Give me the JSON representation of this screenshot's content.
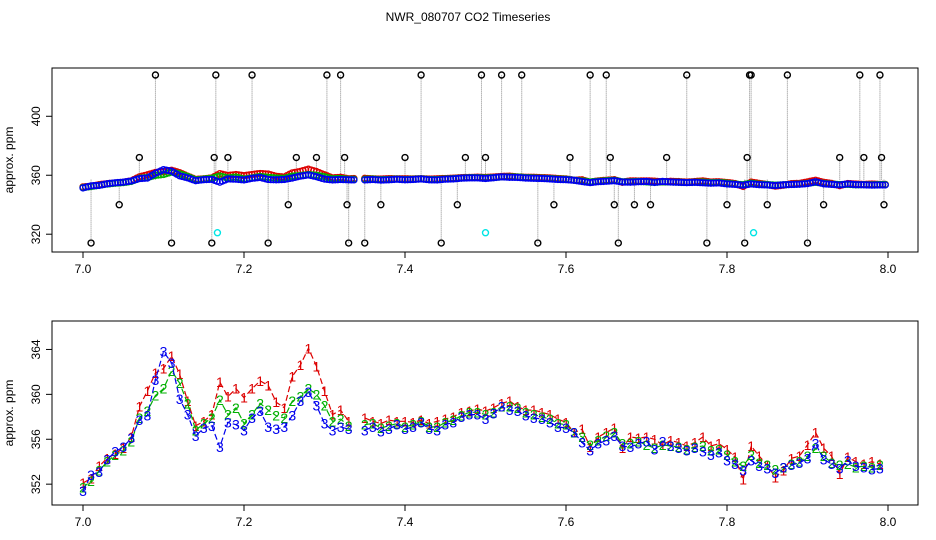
{
  "title": "NWR_080707  CO2 Timeseries",
  "colors": {
    "black": "#000000",
    "red": "#dd0000",
    "green": "#00b000",
    "blue": "#0000ee",
    "cyan": "#00e5e5",
    "grey": "#8a8a8a"
  },
  "chart_data": [
    {
      "type": "scatter",
      "name": "top-panel",
      "ylabel": "approx. ppm",
      "xlim": [
        7.0,
        8.0
      ],
      "ylim": [
        312,
        428
      ],
      "xticks": [
        "7.0",
        "7.2",
        "7.4",
        "7.6",
        "7.8",
        "8.0"
      ],
      "xtick_values": [
        7.0,
        7.2,
        7.4,
        7.6,
        7.8,
        8.0
      ],
      "yticks": [
        "320",
        "360",
        "400"
      ],
      "ytick_values": [
        320,
        360,
        400
      ],
      "outliers_x": [
        7.01,
        7.045,
        7.07,
        7.09,
        7.11,
        7.16,
        7.163,
        7.165,
        7.18,
        7.21,
        7.23,
        7.255,
        7.265,
        7.29,
        7.303,
        7.32,
        7.325,
        7.328,
        7.33,
        7.35,
        7.37,
        7.4,
        7.42,
        7.445,
        7.465,
        7.475,
        7.495,
        7.5,
        7.52,
        7.545,
        7.565,
        7.585,
        7.605,
        7.63,
        7.65,
        7.655,
        7.66,
        7.665,
        7.685,
        7.705,
        7.725,
        7.75,
        7.775,
        7.8,
        7.822,
        7.825,
        7.828,
        7.83,
        7.85,
        7.875,
        7.9,
        7.92,
        7.94,
        7.965,
        7.97,
        7.99,
        7.992,
        7.995
      ],
      "outliers_y": [
        314,
        340,
        372,
        428,
        314,
        314,
        372,
        428,
        372,
        428,
        314,
        340,
        372,
        372,
        428,
        428,
        372,
        340,
        314,
        314,
        340,
        372,
        428,
        314,
        340,
        372,
        428,
        372,
        428,
        428,
        314,
        340,
        372,
        428,
        428,
        372,
        340,
        314,
        340,
        340,
        372,
        428,
        314,
        340,
        314,
        372,
        428,
        428,
        340,
        428,
        314,
        340,
        372,
        428,
        372,
        428,
        372,
        340
      ],
      "cyan_x": [
        7.167,
        7.5,
        7.833
      ],
      "cyan_y": [
        321,
        321,
        321
      ],
      "series_names": [
        "1",
        "2",
        "3"
      ]
    },
    {
      "type": "line",
      "name": "bottom-panel",
      "ylabel": "approx. ppm",
      "xlim": [
        7.0,
        8.0
      ],
      "ylim": [
        350.5,
        366
      ],
      "xticks": [
        "7.0",
        "7.2",
        "7.4",
        "7.6",
        "7.8",
        "8.0"
      ],
      "xtick_values": [
        7.0,
        7.2,
        7.4,
        7.6,
        7.8,
        8.0
      ],
      "yticks": [
        "352",
        "356",
        "360",
        "364"
      ],
      "ytick_values": [
        352,
        356,
        360,
        364
      ],
      "gap_after": [
        7.33
      ],
      "series": [
        {
          "name": "1",
          "color": "#dd0000",
          "x": [
            7.0,
            7.01,
            7.02,
            7.03,
            7.04,
            7.05,
            7.06,
            7.07,
            7.08,
            7.09,
            7.1,
            7.11,
            7.12,
            7.13,
            7.14,
            7.15,
            7.16,
            7.17,
            7.18,
            7.19,
            7.2,
            7.21,
            7.22,
            7.23,
            7.24,
            7.25,
            7.26,
            7.27,
            7.28,
            7.29,
            7.3,
            7.31,
            7.32,
            7.33,
            7.35,
            7.36,
            7.37,
            7.38,
            7.39,
            7.4,
            7.41,
            7.42,
            7.43,
            7.44,
            7.45,
            7.46,
            7.47,
            7.48,
            7.49,
            7.5,
            7.51,
            7.52,
            7.53,
            7.54,
            7.55,
            7.56,
            7.57,
            7.58,
            7.59,
            7.6,
            7.61,
            7.62,
            7.63,
            7.64,
            7.65,
            7.66,
            7.67,
            7.68,
            7.69,
            7.7,
            7.71,
            7.72,
            7.73,
            7.74,
            7.75,
            7.76,
            7.77,
            7.78,
            7.79,
            7.8,
            7.81,
            7.82,
            7.83,
            7.84,
            7.85,
            7.86,
            7.87,
            7.88,
            7.89,
            7.9,
            7.91,
            7.92,
            7.93,
            7.94,
            7.95,
            7.96,
            7.97,
            7.98,
            7.99
          ],
          "values": [
            352.1,
            352.5,
            353.6,
            354.3,
            354.7,
            355.2,
            356.2,
            358.9,
            360.3,
            361.9,
            362.3,
            363.4,
            361.8,
            359.4,
            357.2,
            357.6,
            358.2,
            361.1,
            359.8,
            360.5,
            359.7,
            360.5,
            361.2,
            360.8,
            359.3,
            358.8,
            361.6,
            362.6,
            364.1,
            362.5,
            360.3,
            358.2,
            358.6,
            357.6,
            357.9,
            357.6,
            357.4,
            357.7,
            357.6,
            357.6,
            357.5,
            357.7,
            357.4,
            357.6,
            357.8,
            358.0,
            358.4,
            358.5,
            358.7,
            358.5,
            358.8,
            359.2,
            359.4,
            358.9,
            358.6,
            358.6,
            358.4,
            358.2,
            357.8,
            357.5,
            356.6,
            356.9,
            355.3,
            356.2,
            356.6,
            357.0,
            355.2,
            356.2,
            356.1,
            356.2,
            356.0,
            355.5,
            355.9,
            355.7,
            355.4,
            355.7,
            356.2,
            355.4,
            355.6,
            355.1,
            354.4,
            352.4,
            355.4,
            354.5,
            353.7,
            352.6,
            353.2,
            354.3,
            354.5,
            355.5,
            356.6,
            355.2,
            354.5,
            352.9,
            354.4,
            354.0,
            353.8,
            354.0,
            353.8
          ]
        },
        {
          "name": "2",
          "color": "#00b000",
          "x": [
            7.0,
            7.01,
            7.02,
            7.03,
            7.04,
            7.05,
            7.06,
            7.07,
            7.08,
            7.09,
            7.1,
            7.11,
            7.12,
            7.13,
            7.14,
            7.15,
            7.16,
            7.17,
            7.18,
            7.19,
            7.2,
            7.21,
            7.22,
            7.23,
            7.24,
            7.25,
            7.26,
            7.27,
            7.28,
            7.29,
            7.3,
            7.31,
            7.32,
            7.33,
            7.35,
            7.36,
            7.37,
            7.38,
            7.39,
            7.4,
            7.41,
            7.42,
            7.43,
            7.44,
            7.45,
            7.46,
            7.47,
            7.48,
            7.49,
            7.5,
            7.51,
            7.52,
            7.53,
            7.54,
            7.55,
            7.56,
            7.57,
            7.58,
            7.59,
            7.6,
            7.61,
            7.62,
            7.63,
            7.64,
            7.65,
            7.66,
            7.67,
            7.68,
            7.69,
            7.7,
            7.71,
            7.72,
            7.73,
            7.74,
            7.75,
            7.76,
            7.77,
            7.78,
            7.79,
            7.8,
            7.81,
            7.82,
            7.83,
            7.84,
            7.85,
            7.86,
            7.87,
            7.88,
            7.89,
            7.9,
            7.91,
            7.92,
            7.93,
            7.94,
            7.95,
            7.96,
            7.97,
            7.98,
            7.99
          ],
          "values": [
            351.7,
            352.3,
            353.2,
            354.0,
            354.6,
            355.0,
            355.8,
            357.9,
            358.5,
            359.9,
            360.5,
            362.1,
            361.0,
            359.2,
            356.8,
            357.4,
            357.9,
            359.5,
            358.2,
            358.8,
            357.4,
            358.2,
            359.2,
            358.6,
            358.1,
            357.9,
            359.4,
            359.8,
            360.5,
            360.0,
            359.0,
            357.6,
            357.8,
            357.2,
            357.3,
            357.4,
            357.0,
            357.2,
            357.4,
            357.1,
            357.3,
            357.6,
            357.1,
            357.1,
            357.5,
            357.7,
            358.1,
            358.4,
            358.4,
            358.2,
            358.4,
            358.9,
            358.9,
            358.8,
            358.4,
            358.2,
            358.0,
            357.8,
            357.4,
            357.3,
            356.6,
            356.2,
            355.5,
            355.9,
            356.3,
            356.6,
            355.6,
            355.6,
            355.8,
            355.5,
            355.2,
            355.5,
            355.4,
            355.3,
            355.1,
            355.3,
            355.4,
            355.0,
            355.1,
            354.6,
            354.0,
            353.6,
            354.6,
            353.9,
            353.7,
            353.3,
            353.5,
            353.8,
            354.0,
            354.5,
            355.2,
            354.5,
            353.9,
            353.7,
            353.8,
            353.5,
            353.6,
            353.5,
            353.7
          ]
        },
        {
          "name": "3",
          "color": "#0000ee",
          "x": [
            7.0,
            7.01,
            7.02,
            7.03,
            7.04,
            7.05,
            7.06,
            7.07,
            7.08,
            7.09,
            7.1,
            7.11,
            7.12,
            7.13,
            7.14,
            7.15,
            7.16,
            7.17,
            7.18,
            7.19,
            7.2,
            7.21,
            7.22,
            7.23,
            7.24,
            7.25,
            7.26,
            7.27,
            7.28,
            7.29,
            7.3,
            7.31,
            7.32,
            7.33,
            7.35,
            7.36,
            7.37,
            7.38,
            7.39,
            7.4,
            7.41,
            7.42,
            7.43,
            7.44,
            7.45,
            7.46,
            7.47,
            7.48,
            7.49,
            7.5,
            7.51,
            7.52,
            7.53,
            7.54,
            7.55,
            7.56,
            7.57,
            7.58,
            7.59,
            7.6,
            7.61,
            7.62,
            7.63,
            7.64,
            7.65,
            7.66,
            7.67,
            7.68,
            7.69,
            7.7,
            7.71,
            7.72,
            7.73,
            7.74,
            7.75,
            7.76,
            7.77,
            7.78,
            7.79,
            7.8,
            7.81,
            7.82,
            7.83,
            7.84,
            7.85,
            7.86,
            7.87,
            7.88,
            7.89,
            7.9,
            7.91,
            7.92,
            7.93,
            7.94,
            7.95,
            7.96,
            7.97,
            7.98,
            7.99
          ],
          "values": [
            351.4,
            352.8,
            353.1,
            354.2,
            354.9,
            355.3,
            356.1,
            357.7,
            358.1,
            361.3,
            363.8,
            362.8,
            359.6,
            358.2,
            356.3,
            357.0,
            357.2,
            355.3,
            357.5,
            357.3,
            356.8,
            357.9,
            358.5,
            357.1,
            356.9,
            357.1,
            358.1,
            359.4,
            360.2,
            359.0,
            357.4,
            356.8,
            357.1,
            356.9,
            356.8,
            357.1,
            356.7,
            356.9,
            357.3,
            356.9,
            357.1,
            357.5,
            356.9,
            356.8,
            357.3,
            357.5,
            358.0,
            358.2,
            358.2,
            357.8,
            358.3,
            358.9,
            358.6,
            358.5,
            358.1,
            357.9,
            357.8,
            357.5,
            357.1,
            357.0,
            356.6,
            355.7,
            355.0,
            355.6,
            355.9,
            356.3,
            355.4,
            355.3,
            355.6,
            355.8,
            355.1,
            355.8,
            355.4,
            355.2,
            355.0,
            355.2,
            354.9,
            354.6,
            354.8,
            354.1,
            353.8,
            353.2,
            354.1,
            353.6,
            353.4,
            353.0,
            353.5,
            353.7,
            353.9,
            354.3,
            355.6,
            354.2,
            353.8,
            353.4,
            354.1,
            353.6,
            353.5,
            353.3,
            353.4
          ]
        }
      ]
    }
  ]
}
